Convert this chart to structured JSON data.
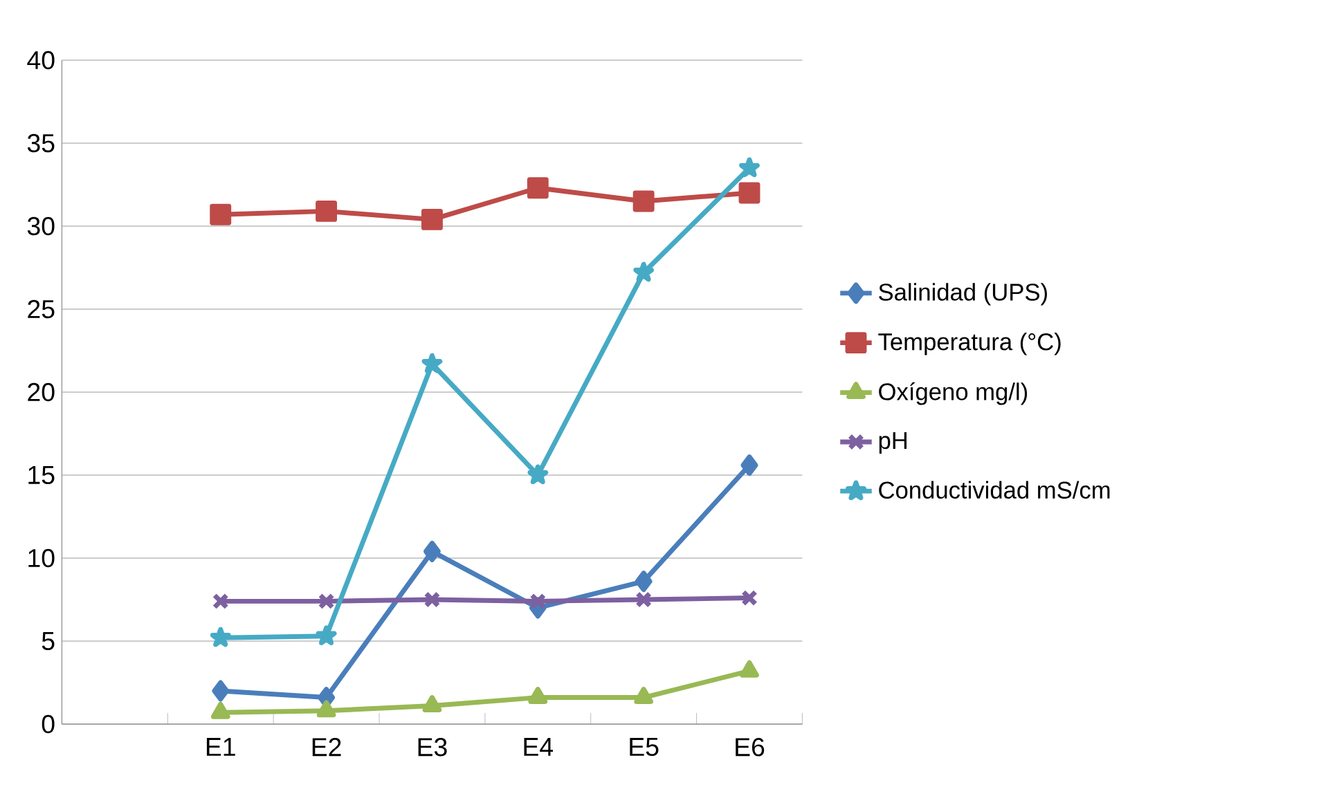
{
  "chart_data": {
    "type": "line",
    "categories": [
      null,
      "E1",
      "E2",
      "E3",
      "E4",
      "E5",
      "E6"
    ],
    "series": [
      {
        "name": "Salinidad (UPS)",
        "color": "#4a7ebb",
        "marker": "diamond",
        "values": [
          null,
          2.0,
          1.6,
          10.4,
          7.0,
          8.6,
          15.6
        ]
      },
      {
        "name": "Temperatura (°C)",
        "color": "#be4b48",
        "marker": "square",
        "values": [
          null,
          30.7,
          30.9,
          30.4,
          32.3,
          31.5,
          32.0
        ]
      },
      {
        "name": "Oxígeno mg/l)",
        "color": "#98b954",
        "marker": "triangle",
        "values": [
          null,
          0.7,
          0.8,
          1.1,
          1.6,
          1.6,
          3.2
        ]
      },
      {
        "name": "pH",
        "color": "#7d60a0",
        "marker": "cross",
        "values": [
          null,
          7.4,
          7.4,
          7.5,
          7.4,
          7.5,
          7.6
        ]
      },
      {
        "name": "Conductividad mS/cm",
        "color": "#46aac5",
        "marker": "star",
        "values": [
          null,
          5.2,
          5.3,
          21.7,
          15.0,
          27.2,
          33.5
        ]
      }
    ],
    "ylim": [
      0,
      40
    ],
    "yticks": [
      0,
      5,
      10,
      15,
      20,
      25,
      30,
      35,
      40
    ],
    "grid": "y",
    "legend": "right"
  }
}
